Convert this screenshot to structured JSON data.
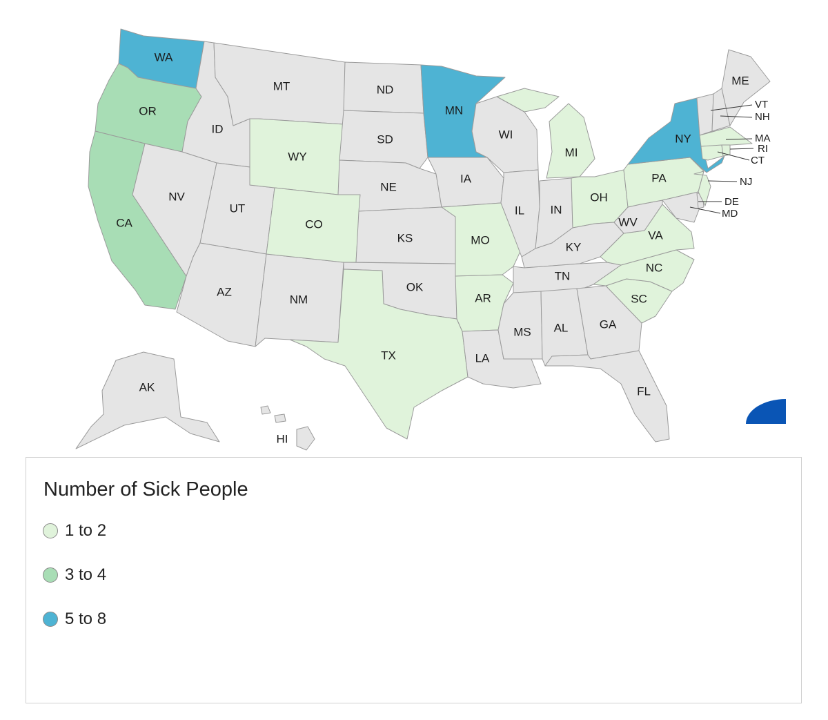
{
  "legend": {
    "title": "Number of Sick People",
    "items": [
      {
        "label": "1 to 2",
        "color": "#e0f3db"
      },
      {
        "label": "3 to 4",
        "color": "#a8ddb5"
      },
      {
        "label": "5 to 8",
        "color": "#4eb3d3"
      }
    ]
  },
  "no_data_color": "#e5e5e5",
  "states": {
    "WA": 3,
    "OR": 2,
    "CA": 2,
    "MN": 3,
    "NY": 3,
    "WY": 1,
    "CO": 1,
    "TX": 1,
    "MO": 1,
    "AR": 1,
    "MI": 1,
    "OH": 1,
    "PA": 1,
    "NJ": 1,
    "VA": 1,
    "NC": 1,
    "SC": 1,
    "MA": 1,
    "CT": 1,
    "RI": 1,
    "MT": 0,
    "ID": 0,
    "NV": 0,
    "UT": 0,
    "AZ": 0,
    "NM": 0,
    "ND": 0,
    "SD": 0,
    "NE": 0,
    "KS": 0,
    "OK": 0,
    "IA": 0,
    "WI": 0,
    "IL": 0,
    "IN": 0,
    "KY": 0,
    "TN": 0,
    "MS": 0,
    "AL": 0,
    "GA": 0,
    "FL": 0,
    "LA": 0,
    "WV": 0,
    "ME": 0,
    "VT": 0,
    "NH": 0,
    "DE": 0,
    "MD": 0,
    "AK": 0,
    "HI": 0
  },
  "labels": {
    "WA": "WA",
    "OR": "OR",
    "CA": "CA",
    "MT": "MT",
    "ID": "ID",
    "NV": "NV",
    "UT": "UT",
    "AZ": "AZ",
    "NM": "NM",
    "WY": "WY",
    "CO": "CO",
    "ND": "ND",
    "SD": "SD",
    "NE": "NE",
    "KS": "KS",
    "OK": "OK",
    "TX": "TX",
    "MN": "MN",
    "IA": "IA",
    "MO": "MO",
    "AR": "AR",
    "LA": "LA",
    "WI": "WI",
    "IL": "IL",
    "MI": "MI",
    "IN": "IN",
    "OH": "OH",
    "KY": "KY",
    "TN": "TN",
    "MS": "MS",
    "AL": "AL",
    "GA": "GA",
    "FL": "FL",
    "SC": "SC",
    "NC": "NC",
    "VA": "VA",
    "WV": "WV",
    "PA": "PA",
    "NY": "NY",
    "ME": "ME",
    "VT": "VT",
    "NH": "NH",
    "MA": "MA",
    "RI": "RI",
    "CT": "CT",
    "NJ": "NJ",
    "DE": "DE",
    "MD": "MD",
    "AK": "AK",
    "HI": "HI"
  }
}
